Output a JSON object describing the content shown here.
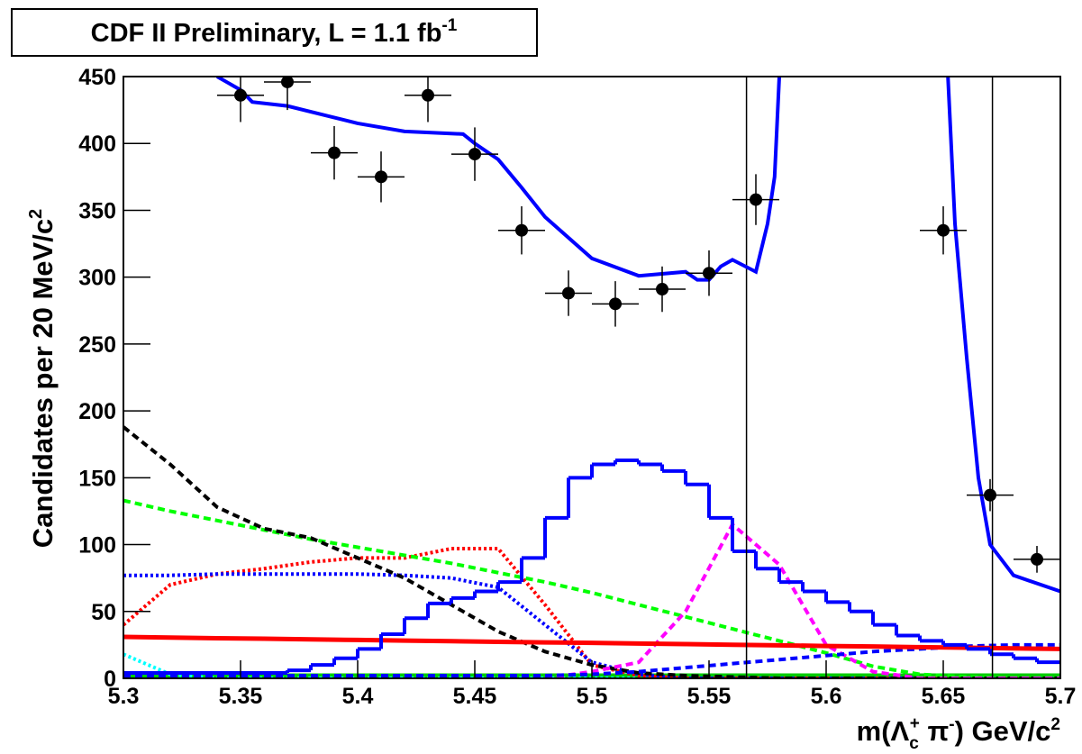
{
  "chart_data": {
    "type": "physics-fit",
    "title": "CDF II Preliminary, L = 1.1 fb",
    "title_superscript": "-1",
    "y_label": "Candidates per 20 MeV/c",
    "y_label_superscript": "2",
    "x_label": [
      "m(Λ",
      "c",
      "+",
      " π",
      "-",
      ") GeV/c",
      "2"
    ],
    "xlim": [
      5.3,
      5.7
    ],
    "ylim": [
      0,
      450
    ],
    "xticks": [
      5.3,
      5.35,
      5.4,
      5.45,
      5.5,
      5.55,
      5.6,
      5.65,
      5.7
    ],
    "yticks": [
      0,
      50,
      100,
      150,
      200,
      250,
      300,
      350,
      400,
      450
    ],
    "vlines": [
      5.566,
      5.671
    ],
    "points": {
      "color": "#000000",
      "x": [
        5.35,
        5.37,
        5.39,
        5.41,
        5.43,
        5.45,
        5.47,
        5.49,
        5.51,
        5.53,
        5.55,
        5.57,
        5.65,
        5.67,
        5.69
      ],
      "values": [
        436,
        446,
        393,
        375,
        436,
        392,
        335,
        288,
        280,
        291,
        303,
        358,
        335,
        137,
        89
      ],
      "errors": [
        20,
        21,
        20,
        19,
        20,
        20,
        18,
        17,
        17,
        17,
        17,
        19,
        18,
        12,
        10
      ],
      "xerrors": [
        0.01,
        0.01,
        0.01,
        0.01,
        0.01,
        0.01,
        0.01,
        0.01,
        0.01,
        0.01,
        0.01,
        0.01,
        0.01,
        0.01,
        0.01
      ]
    },
    "fit": {
      "color": "#0000ff",
      "x": [
        5.34,
        5.35,
        5.355,
        5.37,
        5.4,
        5.42,
        5.445,
        5.45,
        5.46,
        5.47,
        5.48,
        5.5,
        5.52,
        5.54,
        5.545,
        5.55,
        5.555,
        5.56,
        5.57,
        5.575,
        5.578,
        5.58,
        5.6,
        5.652,
        5.655,
        5.66,
        5.665,
        5.67,
        5.68,
        5.7
      ],
      "values": [
        450,
        440,
        431,
        428,
        415,
        409,
        407,
        400,
        388,
        367,
        345,
        314,
        301,
        304,
        298,
        298,
        308,
        313,
        304,
        340,
        375,
        450,
        null,
        450,
        340,
        240,
        150,
        100,
        77,
        65
      ]
    },
    "histogram": {
      "color": "#0000ff",
      "bins": [
        5.3,
        5.31,
        5.32,
        5.33,
        5.34,
        5.35,
        5.36,
        5.37,
        5.38,
        5.39,
        5.4,
        5.41,
        5.42,
        5.43,
        5.44,
        5.45,
        5.46,
        5.47,
        5.48,
        5.49,
        5.5,
        5.51,
        5.52,
        5.53,
        5.54,
        5.55,
        5.56,
        5.57,
        5.58,
        5.59,
        5.6,
        5.61,
        5.62,
        5.63,
        5.64,
        5.65,
        5.66,
        5.67,
        5.68,
        5.69,
        5.7
      ],
      "counts": [
        4,
        4,
        4,
        4,
        4,
        4,
        4,
        6,
        10,
        15,
        22,
        33,
        45,
        56,
        60,
        65,
        72,
        90,
        120,
        150,
        160,
        163,
        160,
        155,
        145,
        120,
        95,
        82,
        72,
        65,
        57,
        50,
        40,
        32,
        28,
        25,
        22,
        18,
        15,
        12
      ]
    },
    "x": [
      5.3,
      5.32,
      5.34,
      5.36,
      5.38,
      5.4,
      5.42,
      5.44,
      5.46,
      5.48,
      5.5,
      5.52,
      5.54,
      5.56,
      5.58,
      5.6,
      5.62,
      5.64,
      5.66,
      5.68,
      5.7
    ],
    "series": [
      {
        "color": "#00cc00",
        "style": "solid",
        "values": [
          2,
          2,
          2,
          2,
          2,
          2,
          2,
          2,
          2,
          2,
          2,
          2,
          2,
          2,
          2,
          2,
          2,
          2,
          2,
          2,
          2
        ]
      },
      {
        "color": "#00ffff",
        "style": "dotted",
        "values": [
          18,
          3,
          0,
          0,
          0,
          0,
          0,
          0,
          0,
          0,
          0,
          0,
          0,
          0,
          0,
          0,
          0,
          0,
          0,
          0,
          0
        ]
      },
      {
        "color": "#ff0000",
        "style": "dotted",
        "values": [
          40,
          70,
          78,
          82,
          87,
          90,
          90,
          97,
          97,
          55,
          10,
          2,
          0,
          0,
          0,
          0,
          0,
          0,
          0,
          0,
          0
        ]
      },
      {
        "color": "#0000ff",
        "style": "dotted",
        "values": [
          77,
          77,
          78,
          78,
          78,
          78,
          77,
          75,
          68,
          40,
          12,
          3,
          0,
          0,
          0,
          0,
          0,
          0,
          0,
          0,
          0
        ]
      },
      {
        "color": "#00ff00",
        "style": "dashed",
        "values": [
          133,
          125,
          118,
          111,
          104,
          98,
          92,
          86,
          79,
          72,
          64,
          55,
          46,
          37,
          28,
          19,
          9,
          3,
          1,
          0,
          0
        ]
      },
      {
        "color": "#000000",
        "style": "dashed",
        "values": [
          188,
          160,
          128,
          112,
          105,
          90,
          75,
          55,
          35,
          20,
          10,
          4,
          2,
          1,
          0,
          0,
          0,
          0,
          0,
          0,
          0
        ]
      },
      {
        "color": "#ff00ff",
        "style": "dashed",
        "values": [
          0,
          0,
          0,
          0,
          0,
          0,
          0,
          0,
          0,
          0,
          5,
          12,
          50,
          115,
          85,
          25,
          5,
          0,
          0,
          0,
          0
        ]
      },
      {
        "color": "#0000ff",
        "style": "dashed",
        "values": [
          2,
          2,
          2,
          2,
          2,
          2,
          2,
          2,
          2,
          2,
          3,
          5,
          8,
          11,
          14,
          17,
          20,
          22,
          24,
          25,
          25
        ]
      },
      {
        "color": "#ff0000",
        "style": "solid",
        "values": [
          31,
          30.5,
          30,
          29.6,
          29.1,
          28.7,
          28.2,
          27.8,
          27.3,
          26.9,
          26.5,
          26,
          25.6,
          25.1,
          24.7,
          24.2,
          23.8,
          23.3,
          22.9,
          22.4,
          22
        ]
      }
    ]
  }
}
